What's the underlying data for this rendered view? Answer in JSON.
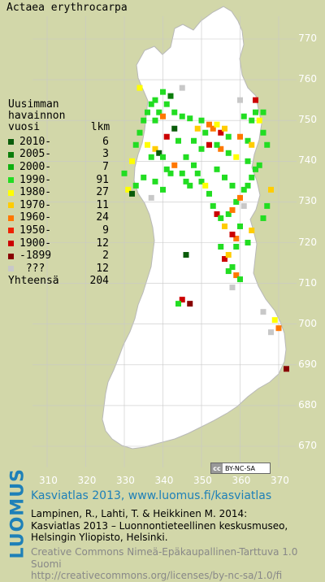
{
  "title": "Actaea erythrocarpa",
  "legend": {
    "header": [
      "Uusimman",
      "havainnon",
      "vuosi        lkm"
    ],
    "items": [
      {
        "label": "2010-",
        "count": "6",
        "color": "#0a5c0a"
      },
      {
        "label": "2005-",
        "count": "3",
        "color": "#0b7d0b"
      },
      {
        "label": "2000-",
        "count": "7",
        "color": "#10b010"
      },
      {
        "label": "1990-",
        "count": "91",
        "color": "#22dd22"
      },
      {
        "label": "1980-",
        "count": "27",
        "color": "#ffff00"
      },
      {
        "label": "1970-",
        "count": "11",
        "color": "#ffcc00"
      },
      {
        "label": "1960-",
        "count": "24",
        "color": "#ff7700"
      },
      {
        "label": "1950-",
        "count": "9",
        "color": "#ee2200"
      },
      {
        "label": "1900-",
        "count": "12",
        "color": "#cc0000"
      },
      {
        "label": "-1899",
        "count": "2",
        "color": "#880000"
      },
      {
        "label": " ???",
        "count": "12",
        "color": "#c8c8c8"
      }
    ],
    "total_label": "Yhteensä",
    "total_count": "204"
  },
  "y_axis_labels": [
    "770",
    "760",
    "750",
    "740",
    "730",
    "720",
    "710",
    "700",
    "690",
    "680",
    "670"
  ],
  "x_axis_labels": [
    "310",
    "320",
    "330",
    "340",
    "350",
    "360",
    "370"
  ],
  "license_badge": "BY-NC-SA",
  "footer": {
    "brand": "LUOMUS",
    "link": "Kasviatlas 2013, www.luomus.fi/kasviatlas",
    "citation": [
      "Lampinen, R., Lahti, T. & Heikkinen M. 2014:",
      "Kasviatlas 2013 – Luonnontieteellinen keskusmuseo,",
      "Helsingin Yliopisto, Helsinki."
    ],
    "license": [
      "Creative Commons Nimeä-Epäkaupallinen-Tarttuva 1.0 Suomi",
      "http://creativecommons.org/licenses/by-nc-sa/1.0/fi"
    ]
  },
  "colors": {
    "land": "#ffffff",
    "background": "#d2d7a9",
    "grid": "#c8c8c8",
    "accent": "#1e80b8"
  },
  "observations": [
    {
      "e": 347,
      "n": 750.5,
      "c": "#22dd22"
    },
    {
      "e": 350,
      "n": 750,
      "c": "#22dd22"
    },
    {
      "e": 352,
      "n": 749,
      "c": "#ff7700"
    },
    {
      "e": 353,
      "n": 748,
      "c": "#ff7700"
    },
    {
      "e": 354,
      "n": 749,
      "c": "#ffff00"
    },
    {
      "e": 355,
      "n": 747,
      "c": "#cc0000"
    },
    {
      "e": 351,
      "n": 747,
      "c": "#22dd22"
    },
    {
      "e": 349,
      "n": 748,
      "c": "#ffcc00"
    },
    {
      "e": 356,
      "n": 748,
      "c": "#ffcc00"
    },
    {
      "e": 357,
      "n": 746,
      "c": "#22dd22"
    },
    {
      "e": 360,
      "n": 746,
      "c": "#ff7700"
    },
    {
      "e": 362,
      "n": 745,
      "c": "#22dd22"
    },
    {
      "e": 363,
      "n": 744,
      "c": "#ffcc00"
    },
    {
      "e": 337,
      "n": 754,
      "c": "#22dd22"
    },
    {
      "e": 338,
      "n": 755,
      "c": "#22dd22"
    },
    {
      "e": 339,
      "n": 752,
      "c": "#22dd22"
    },
    {
      "e": 336,
      "n": 752,
      "c": "#22dd22"
    },
    {
      "e": 340,
      "n": 751,
      "c": "#ff7700"
    },
    {
      "e": 341,
      "n": 754,
      "c": "#22dd22"
    },
    {
      "e": 342,
      "n": 756,
      "c": "#0b7d0b"
    },
    {
      "e": 343,
      "n": 752,
      "c": "#22dd22"
    },
    {
      "e": 335,
      "n": 750,
      "c": "#22dd22"
    },
    {
      "e": 334,
      "n": 747,
      "c": "#22dd22"
    },
    {
      "e": 333,
      "n": 744,
      "c": "#22dd22"
    },
    {
      "e": 332,
      "n": 740,
      "c": "#ffff00"
    },
    {
      "e": 330,
      "n": 737,
      "c": "#22dd22"
    },
    {
      "e": 331,
      "n": 733,
      "c": "#ffff00"
    },
    {
      "e": 332,
      "n": 732,
      "c": "#0a5c0a"
    },
    {
      "e": 333,
      "n": 734,
      "c": "#22dd22"
    },
    {
      "e": 337,
      "n": 741,
      "c": "#22dd22"
    },
    {
      "e": 338,
      "n": 743,
      "c": "#ffcc00"
    },
    {
      "e": 339,
      "n": 742,
      "c": "#0a5c0a"
    },
    {
      "e": 340,
      "n": 741,
      "c": "#22dd22"
    },
    {
      "e": 341,
      "n": 738,
      "c": "#22dd22"
    },
    {
      "e": 342,
      "n": 737,
      "c": "#22dd22"
    },
    {
      "e": 345,
      "n": 737,
      "c": "#22dd22"
    },
    {
      "e": 346,
      "n": 735,
      "c": "#22dd22"
    },
    {
      "e": 347,
      "n": 734,
      "c": "#22dd22"
    },
    {
      "e": 350,
      "n": 735,
      "c": "#22dd22"
    },
    {
      "e": 351,
      "n": 734,
      "c": "#ffff00"
    },
    {
      "e": 352,
      "n": 732,
      "c": "#22dd22"
    },
    {
      "e": 353,
      "n": 729,
      "c": "#22dd22"
    },
    {
      "e": 354,
      "n": 727,
      "c": "#cc0000"
    },
    {
      "e": 355,
      "n": 726,
      "c": "#22dd22"
    },
    {
      "e": 356,
      "n": 724,
      "c": "#ffcc00"
    },
    {
      "e": 357,
      "n": 727,
      "c": "#22dd22"
    },
    {
      "e": 358,
      "n": 728,
      "c": "#ff7700"
    },
    {
      "e": 359,
      "n": 730,
      "c": "#22dd22"
    },
    {
      "e": 360,
      "n": 731,
      "c": "#ff7700"
    },
    {
      "e": 361,
      "n": 733,
      "c": "#22dd22"
    },
    {
      "e": 362,
      "n": 734,
      "c": "#22dd22"
    },
    {
      "e": 363,
      "n": 736,
      "c": "#22dd22"
    },
    {
      "e": 364,
      "n": 738,
      "c": "#22dd22"
    },
    {
      "e": 362,
      "n": 740,
      "c": "#22dd22"
    },
    {
      "e": 359,
      "n": 741,
      "c": "#ffff00"
    },
    {
      "e": 357,
      "n": 742,
      "c": "#22dd22"
    },
    {
      "e": 355,
      "n": 743,
      "c": "#ff7700"
    },
    {
      "e": 354,
      "n": 744,
      "c": "#22dd22"
    },
    {
      "e": 364,
      "n": 752,
      "c": "#22dd22"
    },
    {
      "e": 365,
      "n": 750,
      "c": "#ffff00"
    },
    {
      "e": 363,
      "n": 750,
      "c": "#22dd22"
    },
    {
      "e": 361,
      "n": 751,
      "c": "#22dd22"
    },
    {
      "e": 366,
      "n": 747,
      "c": "#22dd22"
    },
    {
      "e": 367,
      "n": 744,
      "c": "#22dd22"
    },
    {
      "e": 356,
      "n": 716,
      "c": "#cc0000"
    },
    {
      "e": 357,
      "n": 713,
      "c": "#22dd22"
    },
    {
      "e": 358,
      "n": 714,
      "c": "#22dd22"
    },
    {
      "e": 359,
      "n": 712,
      "c": "#ff7700"
    },
    {
      "e": 360,
      "n": 711,
      "c": "#22dd22"
    },
    {
      "e": 359,
      "n": 719,
      "c": "#22dd22"
    },
    {
      "e": 346,
      "n": 717,
      "c": "#0a5c0a"
    },
    {
      "e": 359,
      "n": 721,
      "c": "#ff7700"
    },
    {
      "e": 358,
      "n": 722,
      "c": "#cc0000"
    },
    {
      "e": 345,
      "n": 706,
      "c": "#cc0000"
    },
    {
      "e": 347,
      "n": 705,
      "c": "#880000"
    },
    {
      "e": 344,
      "n": 705,
      "c": "#22dd22"
    },
    {
      "e": 369,
      "n": 701,
      "c": "#ffff00"
    },
    {
      "e": 370,
      "n": 699,
      "c": "#ff7700"
    },
    {
      "e": 372,
      "n": 689,
      "c": "#880000"
    },
    {
      "e": 343,
      "n": 748,
      "c": "#0a5c0a"
    },
    {
      "e": 334,
      "n": 758,
      "c": "#ffff00"
    },
    {
      "e": 341,
      "n": 746,
      "c": "#cc0000"
    },
    {
      "e": 336,
      "n": 744,
      "c": "#ffff00"
    },
    {
      "e": 344,
      "n": 745,
      "c": "#22dd22"
    },
    {
      "e": 346,
      "n": 741,
      "c": "#22dd22"
    },
    {
      "e": 348,
      "n": 739,
      "c": "#22dd22"
    },
    {
      "e": 349,
      "n": 737,
      "c": "#22dd22"
    },
    {
      "e": 335,
      "n": 736,
      "c": "#22dd22"
    },
    {
      "e": 352,
      "n": 744,
      "c": "#cc0000"
    },
    {
      "e": 337,
      "n": 731,
      "c": "#c8c8c8"
    },
    {
      "e": 363,
      "n": 723,
      "c": "#ffcc00"
    },
    {
      "e": 366,
      "n": 726,
      "c": "#22dd22"
    },
    {
      "e": 367,
      "n": 729,
      "c": "#22dd22"
    },
    {
      "e": 368,
      "n": 733,
      "c": "#ffcc00"
    },
    {
      "e": 365,
      "n": 739,
      "c": "#22dd22"
    },
    {
      "e": 361,
      "n": 729,
      "c": "#c8c8c8"
    },
    {
      "e": 366,
      "n": 703,
      "c": "#c8c8c8"
    },
    {
      "e": 368,
      "n": 698,
      "c": "#c8c8c8"
    },
    {
      "e": 358,
      "n": 709,
      "c": "#c8c8c8"
    },
    {
      "e": 345,
      "n": 758,
      "c": "#c8c8c8"
    },
    {
      "e": 360,
      "n": 755,
      "c": "#c8c8c8"
    },
    {
      "e": 364,
      "n": 755,
      "c": "#cc0000"
    },
    {
      "e": 366,
      "n": 752,
      "c": "#22dd22"
    },
    {
      "e": 338,
      "n": 750,
      "c": "#22dd22"
    },
    {
      "e": 340,
      "n": 757,
      "c": "#22dd22"
    },
    {
      "e": 345,
      "n": 751,
      "c": "#22dd22"
    },
    {
      "e": 348,
      "n": 745,
      "c": "#22dd22"
    },
    {
      "e": 350,
      "n": 743,
      "c": "#22dd22"
    },
    {
      "e": 343,
      "n": 739,
      "c": "#ff7700"
    },
    {
      "e": 338,
      "n": 735,
      "c": "#22dd22"
    },
    {
      "e": 340,
      "n": 733,
      "c": "#22dd22"
    },
    {
      "e": 354,
      "n": 738,
      "c": "#22dd22"
    },
    {
      "e": 356,
      "n": 736,
      "c": "#22dd22"
    },
    {
      "e": 358,
      "n": 734,
      "c": "#22dd22"
    },
    {
      "e": 360,
      "n": 724,
      "c": "#22dd22"
    },
    {
      "e": 362,
      "n": 720,
      "c": "#22dd22"
    },
    {
      "e": 355,
      "n": 719,
      "c": "#22dd22"
    },
    {
      "e": 357,
      "n": 717,
      "c": "#ffcc00"
    }
  ]
}
